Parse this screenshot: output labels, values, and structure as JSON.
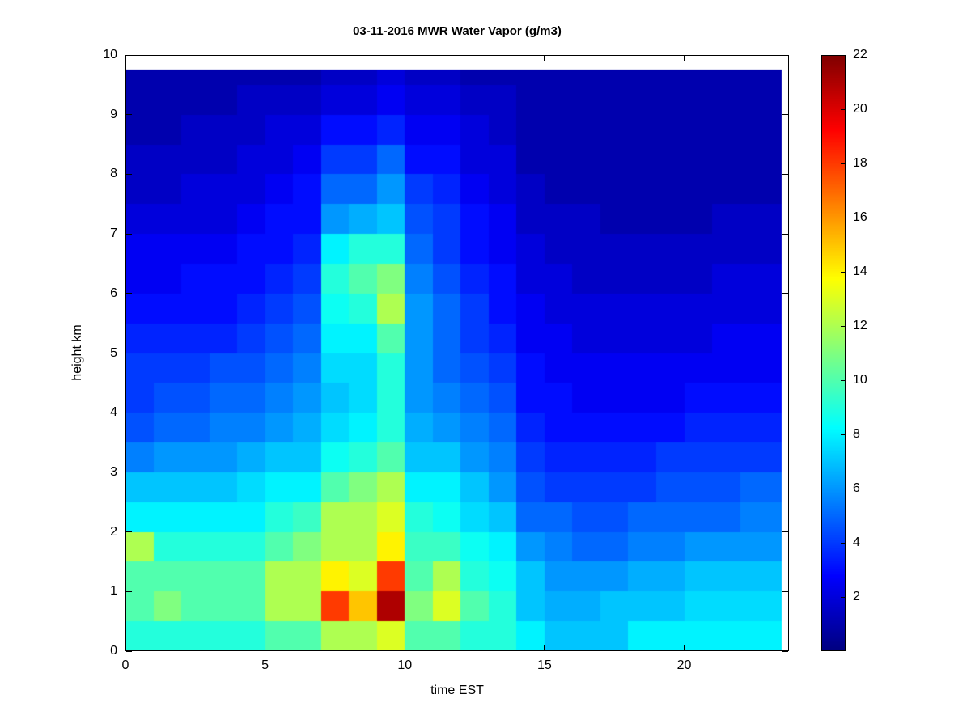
{
  "chart_data": {
    "type": "heatmap",
    "title": "03-11-2016 MWR Water Vapor (g/m3)",
    "xlabel": "time EST",
    "ylabel": "height km",
    "x_range": [
      0,
      23.75
    ],
    "x_data_range": [
      0,
      23.5
    ],
    "y_range": [
      0,
      10
    ],
    "y_data_range": [
      0,
      9.75
    ],
    "x_ticks": [
      0,
      5,
      10,
      15,
      20
    ],
    "y_ticks": [
      0,
      1,
      2,
      3,
      4,
      5,
      6,
      7,
      8,
      9,
      10
    ],
    "grid": false,
    "colormap": "jet",
    "colorbar": {
      "min": 0,
      "max": 22,
      "ticks": [
        2,
        4,
        6,
        8,
        10,
        12,
        14,
        16,
        18,
        20,
        22
      ],
      "position": "right"
    },
    "time_step": 1,
    "height_step": 0.5,
    "units": "g/m3",
    "values_by_time": [
      [
        9,
        10,
        10,
        12,
        8,
        7,
        5.5,
        4.5,
        4,
        4,
        3.5,
        3,
        2.5,
        2.5,
        2,
        1.5,
        1.5,
        1,
        1,
        1
      ],
      [
        9,
        11,
        10,
        9,
        8,
        7,
        6,
        5,
        4.5,
        4,
        3.5,
        3,
        2.5,
        2.5,
        2,
        1.5,
        1.5,
        1,
        1,
        1
      ],
      [
        9,
        10,
        10,
        9,
        8,
        7,
        6,
        5,
        4.5,
        4,
        3.5,
        3,
        3,
        2.5,
        2,
        2,
        1.5,
        1.5,
        1,
        1
      ],
      [
        9,
        10,
        10,
        9,
        8,
        7,
        6,
        5.5,
        5,
        4.5,
        3.5,
        3,
        3,
        2.5,
        2,
        2,
        1.5,
        1.5,
        1,
        1
      ],
      [
        9,
        10,
        10,
        9,
        8,
        7.5,
        6.5,
        5.5,
        5,
        4.5,
        4,
        3.5,
        3,
        3,
        2.5,
        2,
        2,
        1.5,
        1.5,
        1
      ],
      [
        10,
        12,
        12,
        10,
        9,
        8,
        7,
        6,
        5.5,
        5,
        4.5,
        4,
        3.5,
        3,
        3,
        2.5,
        2,
        2,
        1.5,
        1
      ],
      [
        10,
        12,
        12,
        11,
        9.5,
        8,
        7,
        6.5,
        6,
        5.5,
        5,
        4.5,
        4,
        3.5,
        3,
        3,
        2.5,
        2,
        1.5,
        1
      ],
      [
        12,
        18,
        14,
        12,
        12,
        10,
        8.5,
        7.5,
        7,
        7.5,
        8,
        8.5,
        9,
        8,
        6,
        5,
        4,
        3,
        2,
        1.5
      ],
      [
        12,
        15,
        13,
        12,
        12,
        11,
        9,
        8,
        7.5,
        7.5,
        8,
        9,
        10,
        9,
        6.5,
        5,
        4,
        3,
        2,
        1.5
      ],
      [
        13,
        21,
        18,
        14,
        13,
        12,
        10,
        9,
        9,
        9,
        10,
        12,
        11,
        9,
        7,
        6,
        5,
        3.5,
        2.5,
        2
      ],
      [
        10,
        11,
        10,
        9.5,
        9,
        8,
        7,
        6.5,
        6,
        6,
        6,
        6,
        5.5,
        5,
        4.5,
        4,
        3,
        2.5,
        2,
        1.5
      ],
      [
        10,
        13,
        12,
        9.5,
        8.5,
        8,
        7,
        6,
        5.5,
        5,
        5,
        5,
        4.5,
        4,
        4,
        3.5,
        3,
        2.5,
        2,
        1.5
      ],
      [
        9,
        10,
        9,
        8.5,
        7.5,
        7,
        6,
        5.5,
        5,
        4.5,
        4,
        4,
        3.5,
        3,
        3,
        2.5,
        2,
        2,
        1.5,
        1
      ],
      [
        9,
        9,
        8.5,
        8,
        7,
        6,
        5.5,
        5,
        4.5,
        4,
        3.5,
        3,
        3,
        2.5,
        2.5,
        2,
        2,
        1.5,
        1.5,
        1
      ],
      [
        8,
        7,
        7,
        6,
        5,
        4.5,
        4,
        3.5,
        3,
        3,
        2.5,
        2.5,
        2,
        2,
        1.5,
        1.5,
        1,
        1,
        1,
        1
      ],
      [
        7,
        6.5,
        6,
        5.5,
        5,
        4,
        3.5,
        3,
        3,
        2.5,
        2.5,
        2,
        2,
        1.5,
        1.5,
        1,
        1,
        1,
        1,
        1
      ],
      [
        7,
        6.5,
        6,
        5,
        4.5,
        4,
        3.5,
        3,
        2.5,
        2.5,
        2,
        2,
        1.5,
        1.5,
        1.5,
        1,
        1,
        1,
        1,
        1
      ],
      [
        7,
        7,
        6,
        5,
        4.5,
        4,
        3.5,
        3,
        2.5,
        2.5,
        2,
        2,
        1.5,
        1.5,
        1,
        1,
        1,
        1,
        1,
        1
      ],
      [
        8,
        7,
        6.5,
        5.5,
        5,
        4,
        3.5,
        3,
        2.5,
        2.5,
        2,
        2,
        1.5,
        1.5,
        1,
        1,
        1,
        1,
        1,
        1
      ],
      [
        8,
        7,
        6.5,
        5.5,
        5,
        4.5,
        4,
        3,
        2.5,
        2.5,
        2,
        2,
        1.5,
        1.5,
        1,
        1,
        1,
        1,
        1,
        1
      ],
      [
        8,
        7.5,
        7,
        6,
        5,
        4.5,
        4,
        3.5,
        3,
        2.5,
        2,
        2,
        1.5,
        1.5,
        1,
        1,
        1,
        1,
        1,
        1
      ],
      [
        8,
        7.5,
        7,
        6,
        5,
        4.5,
        4,
        3.5,
        3,
        2.5,
        2.5,
        2,
        2,
        1.5,
        1.5,
        1,
        1,
        1,
        1,
        1
      ],
      [
        8,
        7.5,
        7,
        6,
        5.5,
        5,
        4,
        3.5,
        3,
        2.5,
        2.5,
        2,
        2,
        1.5,
        1.5,
        1,
        1,
        1,
        1,
        1
      ],
      [
        8,
        7.5,
        7,
        6,
        5.5,
        5,
        4,
        3.5,
        3,
        2.5,
        2.5,
        2,
        2,
        1.5,
        1.5,
        1,
        1,
        1,
        1,
        1
      ]
    ]
  }
}
